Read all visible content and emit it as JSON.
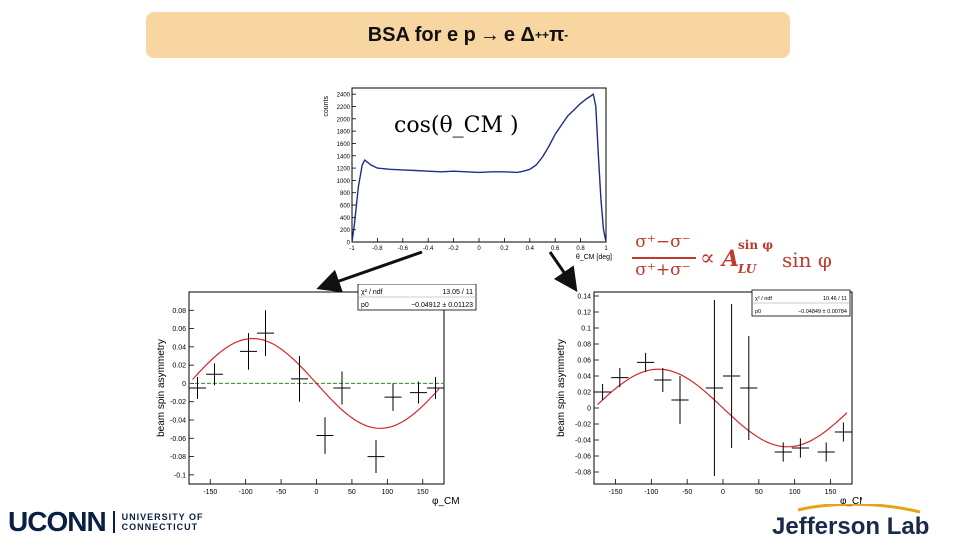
{
  "title": {
    "prefix": "BSA  for e p ",
    "arrow": "→",
    "mid": " e Δ",
    "sup1": "++",
    "pi": " π",
    "sup2": "-"
  },
  "formula": {
    "num": "σ⁺−σ⁻",
    "den": "σ⁺+σ⁻",
    "prop": "∝",
    "A": "A",
    "A_sup": "sin φ",
    "A_sub": "LU",
    "rhs": "sin φ"
  },
  "logos": {
    "uconn_big": "UCONN",
    "uconn_line1": "UNIVERSITY OF",
    "uconn_line2": "CONNECTICUT",
    "jlab": "Jefferson Lab"
  },
  "chart_data": [
    {
      "type": "line",
      "ylabel": "counts",
      "xlabel": "θ_CM [deg]",
      "annotation": "cos(θ_CM )",
      "xlim": [
        -1,
        1
      ],
      "ylim": [
        0,
        2500
      ],
      "x_ticks": [
        "-1",
        "-0.8",
        "-0.6",
        "-0.4",
        "-0.2",
        "0",
        "0.2",
        "0.4",
        "0.6",
        "0.8",
        "1"
      ],
      "y_ticks": [
        "0",
        "200",
        "400",
        "600",
        "800",
        "1000",
        "1200",
        "1400",
        "1600",
        "1800",
        "2000",
        "2200",
        "2400"
      ],
      "series": [
        {
          "x": [
            -1,
            -0.98,
            -0.95,
            -0.92,
            -0.9,
            -0.85,
            -0.8,
            -0.7,
            -0.6,
            -0.5,
            -0.4,
            -0.3,
            -0.2,
            -0.1,
            0,
            0.1,
            0.2,
            0.3,
            0.35,
            0.4,
            0.45,
            0.5,
            0.55,
            0.6,
            0.65,
            0.7,
            0.75,
            0.8,
            0.85,
            0.88,
            0.9,
            0.92,
            0.94,
            0.96,
            0.98,
            1
          ],
          "y": [
            0,
            300,
            900,
            1250,
            1330,
            1250,
            1200,
            1180,
            1170,
            1160,
            1150,
            1140,
            1150,
            1140,
            1130,
            1140,
            1140,
            1130,
            1150,
            1180,
            1250,
            1380,
            1550,
            1750,
            1900,
            2050,
            2150,
            2250,
            2330,
            2370,
            2400,
            2200,
            1400,
            700,
            200,
            0
          ]
        }
      ]
    },
    {
      "type": "scatter",
      "ylabel": "beam spin asymmetry",
      "xlabel": "φ_CM",
      "xlim": [
        -180,
        180
      ],
      "ylim": [
        -0.11,
        0.1
      ],
      "x_ticks": [
        "-150",
        "-100",
        "-50",
        "0",
        "50",
        "100",
        "150"
      ],
      "y_ticks": [
        "0.08",
        "0.06",
        "0.04",
        "0.02",
        "0",
        "-0.02",
        "-0.04",
        "-0.06",
        "-0.08",
        "-0.1"
      ],
      "stats": {
        "label1": "χ² / ndf",
        "value1": "13.05 / 11",
        "label2": "p0",
        "value2": "−0.04912 ± 0.01123"
      },
      "fit_amplitude": 0.04912,
      "baseline": 0,
      "points": [
        {
          "x": -168,
          "y": -0.005,
          "xerr": 12,
          "yerr": 0.012
        },
        {
          "x": -144,
          "y": 0.01,
          "xerr": 12,
          "yerr": 0.012
        },
        {
          "x": -96,
          "y": 0.035,
          "xerr": 12,
          "yerr": 0.02
        },
        {
          "x": -72,
          "y": 0.055,
          "xerr": 12,
          "yerr": 0.025
        },
        {
          "x": -24,
          "y": 0.005,
          "xerr": 12,
          "yerr": 0.025
        },
        {
          "x": 12,
          "y": -0.057,
          "xerr": 12,
          "yerr": 0.02
        },
        {
          "x": 36,
          "y": -0.005,
          "xerr": 12,
          "yerr": 0.018
        },
        {
          "x": 84,
          "y": -0.08,
          "xerr": 12,
          "yerr": 0.018
        },
        {
          "x": 108,
          "y": -0.015,
          "xerr": 12,
          "yerr": 0.015
        },
        {
          "x": 144,
          "y": -0.01,
          "xerr": 12,
          "yerr": 0.012
        },
        {
          "x": 168,
          "y": -0.005,
          "xerr": 12,
          "yerr": 0.012
        }
      ]
    },
    {
      "type": "scatter",
      "ylabel": "beam spin asymmetry",
      "xlabel": "φ_CM",
      "xlim": [
        -180,
        180
      ],
      "ylim": [
        -0.095,
        0.145
      ],
      "x_ticks": [
        "-150",
        "-100",
        "-50",
        "0",
        "50",
        "100",
        "150"
      ],
      "y_ticks": [
        "0.14",
        "0.12",
        "0.1",
        "0.08",
        "0.06",
        "0.04",
        "0.02",
        "0",
        "-0.02",
        "-0.04",
        "-0.06",
        "-0.08"
      ],
      "stats": {
        "label1": "χ² / ndf",
        "value1": "10.46 / 11",
        "label2": "p0",
        "value2": "−0.04849 ± 0.00784"
      },
      "fit_amplitude": 0.04849,
      "points": [
        {
          "x": -168,
          "y": 0.02,
          "xerr": 12,
          "yerr": 0.01
        },
        {
          "x": -144,
          "y": 0.038,
          "xerr": 12,
          "yerr": 0.012
        },
        {
          "x": -108,
          "y": 0.057,
          "xerr": 12,
          "yerr": 0.012
        },
        {
          "x": -84,
          "y": 0.035,
          "xerr": 12,
          "yerr": 0.015
        },
        {
          "x": -60,
          "y": 0.01,
          "xerr": 12,
          "yerr": 0.03
        },
        {
          "x": -12,
          "y": 0.025,
          "xerr": 12,
          "yerr": 0.11
        },
        {
          "x": 12,
          "y": 0.04,
          "xerr": 12,
          "yerr": 0.09
        },
        {
          "x": 36,
          "y": 0.025,
          "xerr": 12,
          "yerr": 0.065
        },
        {
          "x": 84,
          "y": -0.055,
          "xerr": 12,
          "yerr": 0.012
        },
        {
          "x": 108,
          "y": -0.05,
          "xerr": 12,
          "yerr": 0.012
        },
        {
          "x": 144,
          "y": -0.055,
          "xerr": 12,
          "yerr": 0.012
        },
        {
          "x": 168,
          "y": -0.03,
          "xerr": 12,
          "yerr": 0.012
        }
      ]
    }
  ]
}
